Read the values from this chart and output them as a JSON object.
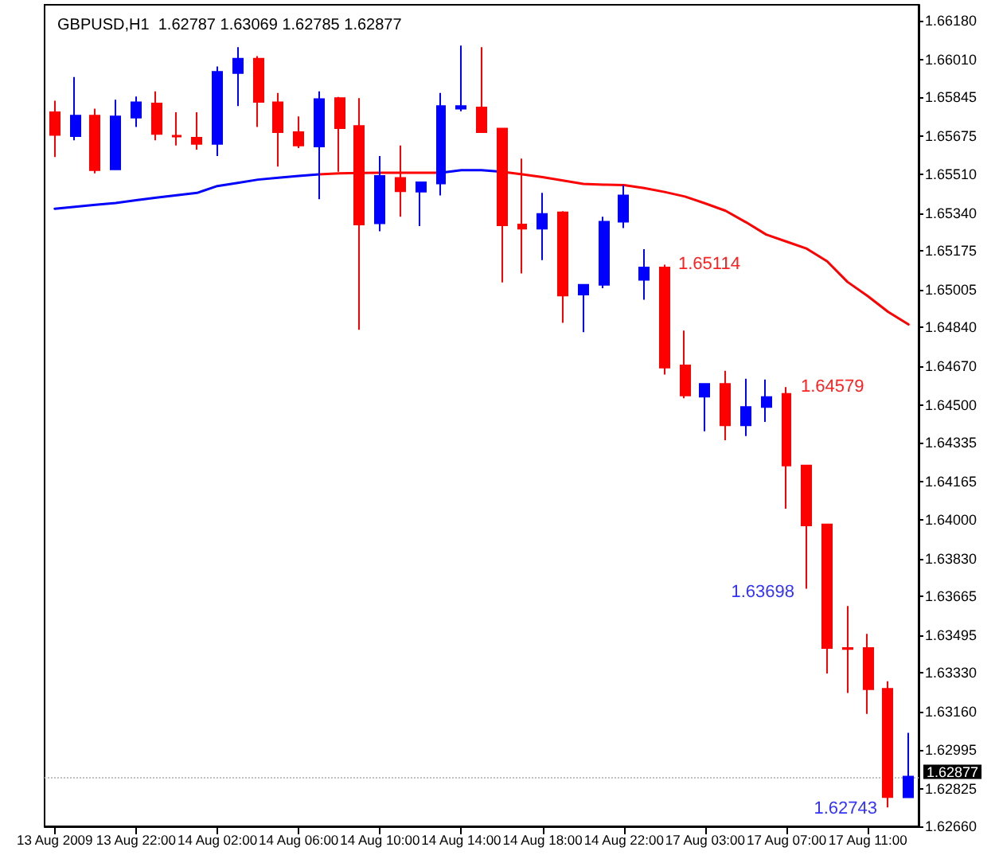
{
  "chart_data": {
    "type": "candlestick",
    "title": "GBPUSD,H1  1.62787 1.63069 1.62785 1.62877",
    "categories": [
      "13 Aug 2009",
      null,
      null,
      null,
      "13 Aug 22:00",
      null,
      null,
      null,
      "14 Aug 02:00",
      null,
      null,
      null,
      "14 Aug 06:00",
      null,
      null,
      null,
      "14 Aug 10:00",
      null,
      null,
      null,
      "14 Aug 14:00",
      null,
      null,
      null,
      "14 Aug 18:00",
      null,
      null,
      null,
      "14 Aug 22:00",
      null,
      null,
      null,
      "17 Aug 03:00",
      null,
      null,
      null,
      "17 Aug 07:00",
      null,
      null,
      null,
      "17 Aug 11:00",
      null,
      null
    ],
    "ylim": [
      1.6266,
      1.6625
    ],
    "yticks": [
      {
        "value": 1.6618,
        "label": "1.66180"
      },
      {
        "value": 1.6601,
        "label": "1.66010"
      },
      {
        "value": 1.65845,
        "label": "1.65845"
      },
      {
        "value": 1.65675,
        "label": "1.65675"
      },
      {
        "value": 1.6551,
        "label": "1.65510"
      },
      {
        "value": 1.6534,
        "label": "1.65340"
      },
      {
        "value": 1.65175,
        "label": "1.65175"
      },
      {
        "value": 1.65005,
        "label": "1.65005"
      },
      {
        "value": 1.6484,
        "label": "1.64840"
      },
      {
        "value": 1.6467,
        "label": "1.64670"
      },
      {
        "value": 1.645,
        "label": "1.64500"
      },
      {
        "value": 1.64335,
        "label": "1.64335"
      },
      {
        "value": 1.64165,
        "label": "1.64165"
      },
      {
        "value": 1.64,
        "label": "1.64000"
      },
      {
        "value": 1.6383,
        "label": "1.63830"
      },
      {
        "value": 1.63665,
        "label": "1.63665"
      },
      {
        "value": 1.63495,
        "label": "1.63495"
      },
      {
        "value": 1.6333,
        "label": "1.63330"
      },
      {
        "value": 1.6316,
        "label": "1.63160"
      },
      {
        "value": 1.62995,
        "label": "1.62995"
      },
      {
        "value": 1.62825,
        "label": "1.62825"
      },
      {
        "value": 1.6266,
        "label": "1.62660"
      }
    ],
    "grid": false,
    "marker": "none",
    "series": [
      {
        "type": "candlestick",
        "ohlc": [
          [
            1.6578,
            1.65831,
            1.65585,
            1.65681
          ],
          [
            1.65676,
            1.65934,
            1.65658,
            1.65766
          ],
          [
            1.65766,
            1.65796,
            1.65513,
            1.65527
          ],
          [
            1.65531,
            1.65835,
            1.65527,
            1.65762
          ],
          [
            1.65757,
            1.65849,
            1.65716,
            1.65824
          ],
          [
            1.65819,
            1.65872,
            1.65658,
            1.65686
          ],
          [
            1.65678,
            1.6578,
            1.65635,
            1.65674
          ],
          [
            1.65669,
            1.6578,
            1.65617,
            1.65642
          ],
          [
            1.65642,
            1.6598,
            1.65589,
            1.65957
          ],
          [
            1.65952,
            1.66065,
            1.65807,
            1.66014
          ],
          [
            1.66014,
            1.66026,
            1.65716,
            1.65826
          ],
          [
            1.65824,
            1.65865,
            1.65543,
            1.65693
          ],
          [
            1.65693,
            1.65762,
            1.65624,
            1.65635
          ],
          [
            1.65631,
            1.65872,
            1.654,
            1.65838
          ],
          [
            1.65842,
            1.65847,
            1.6552,
            1.65711
          ],
          [
            1.6572,
            1.65842,
            1.6483,
            1.6529
          ],
          [
            1.65295,
            1.65589,
            1.6526,
            1.65502
          ],
          [
            1.65493,
            1.65635,
            1.65324,
            1.65435
          ],
          [
            1.65433,
            1.65474,
            1.65283,
            1.65474
          ],
          [
            1.65469,
            1.65865,
            1.65417,
            1.65807
          ],
          [
            1.65796,
            1.66072,
            1.65785,
            1.65807
          ],
          [
            1.65801,
            1.66065,
            1.65693,
            1.65693
          ],
          [
            1.65709,
            1.65709,
            1.65037,
            1.65286
          ],
          [
            1.6529,
            1.65578,
            1.65076,
            1.65272
          ],
          [
            1.65272,
            1.65428,
            1.65134,
            1.65336
          ],
          [
            1.65343,
            1.65348,
            1.6486,
            1.64979
          ],
          [
            1.64984,
            1.65026,
            1.64819,
            1.65026
          ],
          [
            1.65026,
            1.65324,
            1.65012,
            1.65302
          ],
          [
            1.65302,
            1.65462,
            1.65274,
            1.65417
          ],
          [
            1.65048,
            1.65182,
            1.64961,
            1.65102
          ],
          [
            1.65102,
            1.65114,
            1.64634,
            1.64665
          ],
          [
            1.64674,
            1.64826,
            1.64531,
            1.64543
          ],
          [
            1.64538,
            1.64593,
            1.64386,
            1.64593
          ],
          [
            1.64593,
            1.64651,
            1.64347,
            1.64412
          ],
          [
            1.64412,
            1.64616,
            1.64365,
            1.64492
          ],
          [
            1.64492,
            1.64612,
            1.64427,
            1.64536
          ],
          [
            1.6455,
            1.64579,
            1.64048,
            1.64237
          ],
          [
            1.64237,
            1.64237,
            1.63698,
            1.63975
          ],
          [
            1.63979,
            1.63979,
            1.63328,
            1.63439
          ],
          [
            1.63439,
            1.63623,
            1.63243,
            1.63435
          ],
          [
            1.63439,
            1.63501,
            1.63151,
            1.63259
          ],
          [
            1.63261,
            1.63294,
            1.62743,
            1.62788
          ],
          [
            1.62787,
            1.63069,
            1.62785,
            1.62877
          ]
        ],
        "colors": [
          "#ff0000",
          "#0000ff",
          "#ff0000",
          "#0000ff",
          "#0000ff",
          "#ff0000",
          "#ff0000",
          "#ff0000",
          "#0000ff",
          "#0000ff",
          "#ff0000",
          "#ff0000",
          "#ff0000",
          "#0000ff",
          "#ff0000",
          "#ff0000",
          "#0000ff",
          "#ff0000",
          "#0000ff",
          "#0000ff",
          "#0000ff",
          "#ff0000",
          "#ff0000",
          "#ff0000",
          "#0000ff",
          "#ff0000",
          "#0000ff",
          "#0000ff",
          "#0000ff",
          "#0000ff",
          "#ff0000",
          "#ff0000",
          "#0000ff",
          "#ff0000",
          "#0000ff",
          "#0000ff",
          "#ff0000",
          "#ff0000",
          "#ff0000",
          "#ff0000",
          "#ff0000",
          "#ff0000",
          "#0000ff"
        ]
      },
      {
        "type": "line",
        "color": "#0000ff",
        "values": [
          1.65359,
          1.65367,
          1.65376,
          1.65384,
          1.65396,
          1.65407,
          1.65418,
          1.65428,
          1.65458,
          1.65472,
          1.65486,
          1.65494,
          1.65502,
          1.65509,
          null,
          null,
          null,
          null,
          null,
          1.65516,
          1.65527,
          1.65527,
          1.6552,
          null,
          null,
          null,
          null,
          null,
          null,
          null,
          null,
          null,
          null,
          null,
          null,
          null,
          null,
          null,
          null,
          null,
          null,
          null,
          null
        ]
      },
      {
        "type": "line",
        "color": "#ff0000",
        "values": [
          null,
          null,
          null,
          null,
          null,
          null,
          null,
          null,
          null,
          null,
          null,
          null,
          null,
          1.65509,
          1.65513,
          1.65515,
          1.65516,
          1.65516,
          1.65516,
          1.65516,
          null,
          null,
          1.6552,
          1.65509,
          1.65497,
          1.65482,
          1.65467,
          1.65464,
          1.65462,
          1.65449,
          1.65432,
          1.65412,
          1.65382,
          1.6535,
          1.653,
          1.65246,
          1.65215,
          1.65184,
          1.65129,
          1.65039,
          1.64977,
          1.64908,
          1.64853
        ]
      }
    ],
    "ref_lines": [
      {
        "axis": "y",
        "value": 1.62877,
        "label": "1.62877",
        "color": "#c0c0c0",
        "line_style": "dotted"
      }
    ],
    "annotations": [
      "1.65114",
      "1.63698",
      "1.64579",
      "1.62743"
    ]
  }
}
